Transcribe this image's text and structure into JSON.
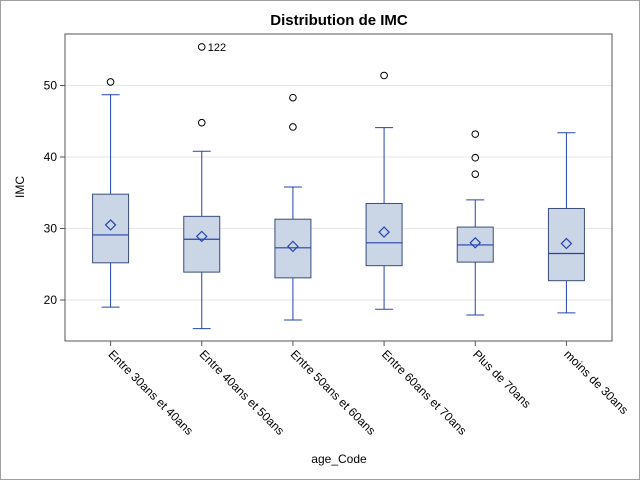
{
  "chart_data": {
    "type": "box",
    "title": "Distribution de IMC",
    "xlabel": "age_Code",
    "ylabel": "IMC",
    "ylim": [
      14,
      58
    ],
    "yticks": [
      20,
      30,
      40,
      50
    ],
    "grid": true,
    "categories": [
      "Entre 30ans et 40ans",
      "Entre 40ans et 50ans",
      "Entre 50ans et 60ans",
      "Entre 60ans et 70ans",
      "Plus de 70ans",
      "moins de 30ans"
    ],
    "boxes": [
      {
        "min": 19.0,
        "q1": 25.2,
        "median": 29.1,
        "q3": 34.8,
        "max": 48.7,
        "mean": 30.5,
        "outliers": [
          50.5
        ]
      },
      {
        "min": 16.0,
        "q1": 23.9,
        "median": 28.5,
        "q3": 31.7,
        "max": 40.8,
        "mean": 28.9,
        "outliers": [
          44.8,
          55.4
        ]
      },
      {
        "min": 17.2,
        "q1": 23.1,
        "median": 27.3,
        "q3": 31.3,
        "max": 35.8,
        "mean": 27.5,
        "outliers": [
          44.2,
          48.3
        ]
      },
      {
        "min": 18.7,
        "q1": 24.8,
        "median": 28.0,
        "q3": 33.5,
        "max": 44.1,
        "mean": 29.5,
        "outliers": [
          51.4
        ]
      },
      {
        "min": 17.9,
        "q1": 25.3,
        "median": 27.7,
        "q3": 30.2,
        "max": 34.0,
        "mean": 28.0,
        "outliers": [
          37.6,
          39.9,
          43.2
        ]
      },
      {
        "min": 18.2,
        "q1": 22.7,
        "median": 26.5,
        "q3": 32.8,
        "max": 43.4,
        "mean": 27.9,
        "outliers": []
      }
    ],
    "annotations": [
      {
        "category": 1,
        "y": 55.4,
        "text": "122"
      }
    ],
    "colors": {
      "box_fill": "#cad5e5",
      "box_stroke": "#3b4d7a",
      "whisker": "#2444b0",
      "median": "#2444b0",
      "mean": "#2444b0",
      "outlier": "#000000",
      "grid": "#e6e6e6",
      "frame": "#555555"
    }
  }
}
